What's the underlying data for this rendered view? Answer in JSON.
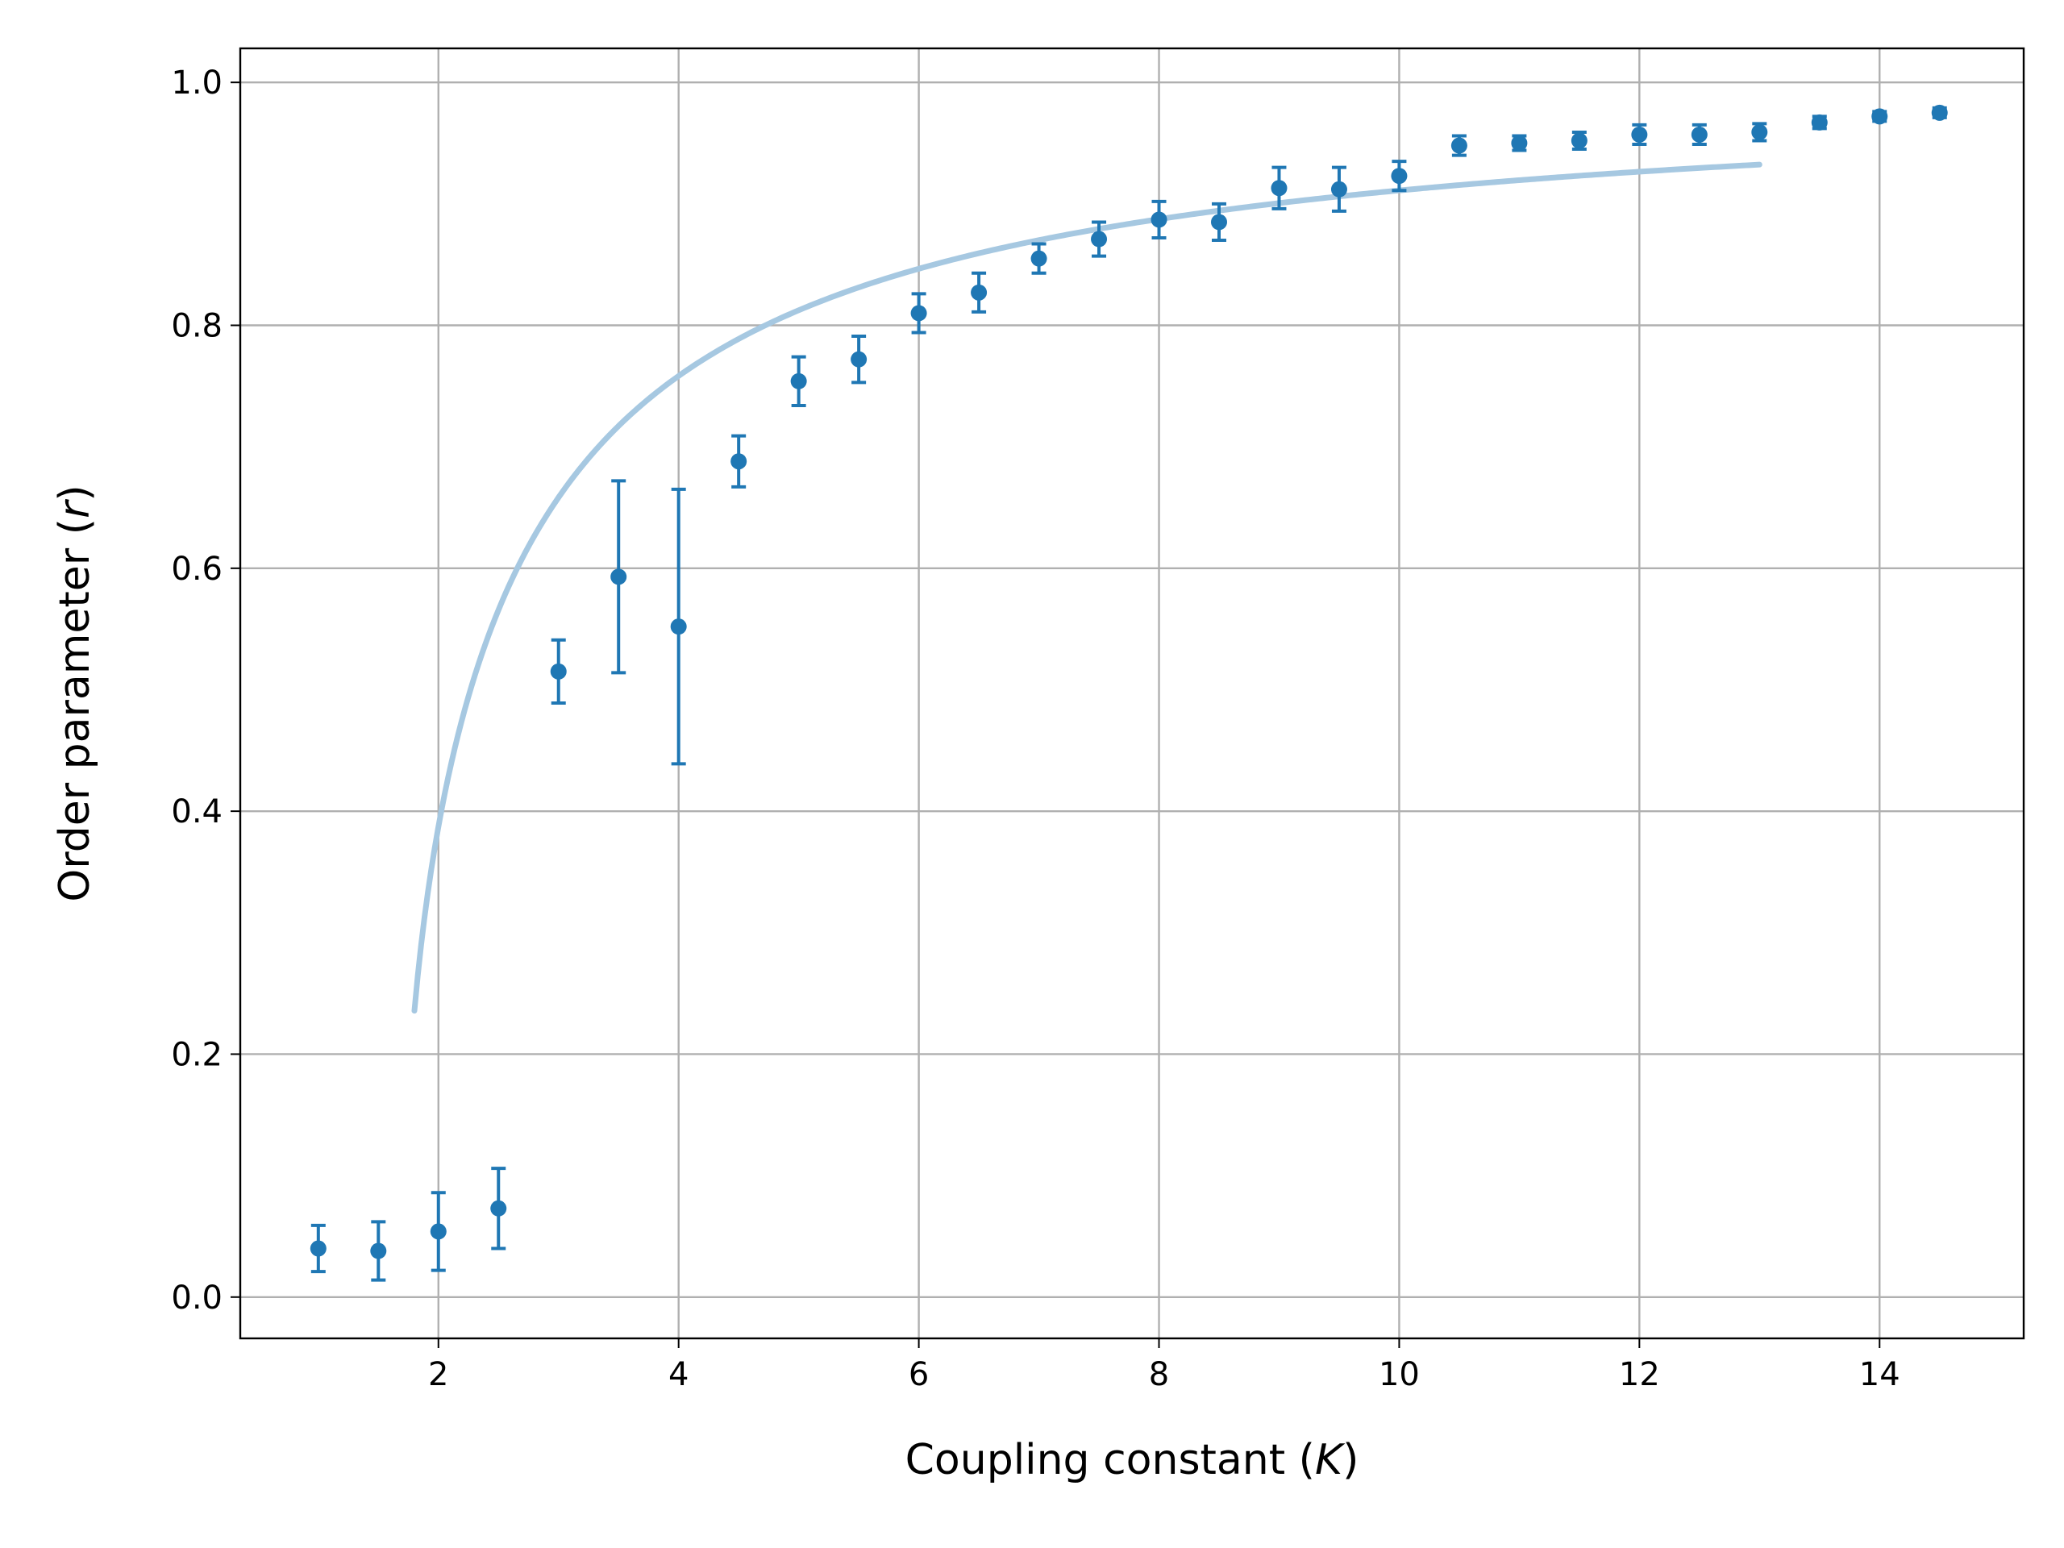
{
  "chart_data": {
    "type": "scatter",
    "title": "",
    "xlabel": {
      "prefix": "Coupling constant (",
      "symbol": "K",
      "suffix": ")"
    },
    "ylabel": {
      "prefix": "Order parameter (",
      "symbol": "r",
      "suffix": ")"
    },
    "xlim": [
      0.35,
      15.2
    ],
    "ylim": [
      -0.034,
      1.028
    ],
    "xticks": [
      2,
      4,
      6,
      8,
      10,
      12,
      14
    ],
    "xtick_labels": [
      "2",
      "4",
      "6",
      "8",
      "10",
      "12",
      "14"
    ],
    "yticks": [
      0.0,
      0.2,
      0.4,
      0.6,
      0.8,
      1.0
    ],
    "ytick_labels": [
      "0.0",
      "0.2",
      "0.4",
      "0.6",
      "0.8",
      "1.0"
    ],
    "grid": true,
    "legend": false,
    "series": [
      {
        "kind": "errorbar",
        "color": "#1f77b4",
        "x": [
          1.0,
          1.5,
          2.0,
          2.5,
          3.0,
          3.5,
          4.0,
          4.5,
          5.0,
          5.5,
          6.0,
          6.5,
          7.0,
          7.5,
          8.0,
          8.5,
          9.0,
          9.5,
          10.0,
          10.5,
          11.0,
          11.5,
          12.0,
          12.5,
          13.0,
          13.5,
          14.0,
          14.5
        ],
        "y": [
          0.04,
          0.038,
          0.054,
          0.073,
          0.515,
          0.593,
          0.552,
          0.688,
          0.754,
          0.772,
          0.81,
          0.827,
          0.855,
          0.871,
          0.887,
          0.885,
          0.913,
          0.912,
          0.923,
          0.948,
          0.95,
          0.952,
          0.957,
          0.957,
          0.959,
          0.967,
          0.972,
          0.975
        ],
        "yerr": [
          0.019,
          0.024,
          0.032,
          0.033,
          0.026,
          0.079,
          0.113,
          0.021,
          0.02,
          0.019,
          0.016,
          0.016,
          0.012,
          0.014,
          0.015,
          0.015,
          0.017,
          0.018,
          0.012,
          0.008,
          0.006,
          0.007,
          0.008,
          0.008,
          0.007,
          0.005,
          0.004,
          0.004
        ]
      },
      {
        "kind": "line",
        "color": "#a6c8e1",
        "formula": "r = sqrt(1 - Kc / K)",
        "Kc": 1.7,
        "x_start": 1.8,
        "x_end": 13.0
      }
    ]
  }
}
